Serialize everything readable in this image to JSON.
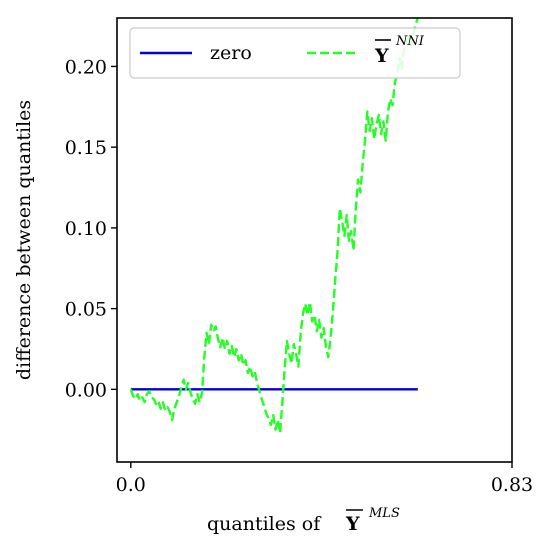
{
  "chart_data": {
    "type": "line",
    "xlabel": "quantiles of",
    "xlabel_symbol": "Y",
    "xlabel_superscript": "MLS",
    "ylabel": "difference between quantiles",
    "xlim": [
      -0.03,
      0.83
    ],
    "ylim": [
      -0.045,
      0.23
    ],
    "x_ticks": [
      0.0,
      0.83
    ],
    "x_tick_labels": [
      "0.0",
      "0.83"
    ],
    "y_ticks": [
      0.0,
      0.05,
      0.1,
      0.15,
      0.2
    ],
    "y_tick_labels": [
      "0.00",
      "0.05",
      "0.10",
      "0.15",
      "0.20"
    ],
    "grid": false,
    "legend_position": "top",
    "series": [
      {
        "name": "zero",
        "color": "#0000dd",
        "style": "solid",
        "x": [
          0.0,
          0.625
        ],
        "y": [
          0.0,
          0.0
        ]
      },
      {
        "name": "Y",
        "name_superscript": "NNI",
        "color": "#22ff22",
        "style": "dashed",
        "x": [
          0.0,
          0.005,
          0.01,
          0.015,
          0.02,
          0.025,
          0.03,
          0.035,
          0.04,
          0.045,
          0.05,
          0.055,
          0.06,
          0.065,
          0.07,
          0.075,
          0.08,
          0.085,
          0.09,
          0.095,
          0.1,
          0.105,
          0.11,
          0.115,
          0.12,
          0.125,
          0.13,
          0.135,
          0.14,
          0.145,
          0.15,
          0.155,
          0.16,
          0.165,
          0.17,
          0.175,
          0.18,
          0.185,
          0.19,
          0.195,
          0.2,
          0.205,
          0.21,
          0.215,
          0.22,
          0.225,
          0.23,
          0.235,
          0.24,
          0.245,
          0.25,
          0.255,
          0.26,
          0.265,
          0.27,
          0.275,
          0.28,
          0.285,
          0.29,
          0.295,
          0.3,
          0.305,
          0.31,
          0.315,
          0.32,
          0.325,
          0.33,
          0.335,
          0.34,
          0.345,
          0.35,
          0.355,
          0.36,
          0.365,
          0.37,
          0.375,
          0.38,
          0.385,
          0.39,
          0.395,
          0.4,
          0.405,
          0.41,
          0.415,
          0.42,
          0.425,
          0.43,
          0.435,
          0.44,
          0.445,
          0.45,
          0.455,
          0.46,
          0.465,
          0.47,
          0.475,
          0.48,
          0.485,
          0.49,
          0.495,
          0.5,
          0.505,
          0.51,
          0.515,
          0.52,
          0.525,
          0.53,
          0.535,
          0.54,
          0.545,
          0.55,
          0.555,
          0.56,
          0.565,
          0.57,
          0.575,
          0.58,
          0.585,
          0.59,
          0.595,
          0.6,
          0.605,
          0.61,
          0.615,
          0.62,
          0.625
        ],
        "y": [
          0.0,
          -0.004,
          -0.006,
          -0.003,
          -0.007,
          -0.005,
          -0.008,
          -0.003,
          -0.001,
          -0.005,
          -0.006,
          -0.009,
          -0.007,
          -0.012,
          -0.008,
          -0.013,
          -0.011,
          -0.014,
          -0.019,
          -0.012,
          -0.008,
          -0.004,
          0.001,
          0.006,
          0.0,
          0.004,
          -0.002,
          -0.006,
          -0.009,
          -0.003,
          -0.008,
          -0.002,
          0.02,
          0.035,
          0.028,
          0.04,
          0.036,
          0.039,
          0.031,
          0.026,
          0.032,
          0.025,
          0.03,
          0.022,
          0.027,
          0.02,
          0.025,
          0.018,
          0.022,
          0.015,
          0.018,
          0.01,
          0.014,
          0.008,
          0.011,
          0.004,
          -0.001,
          -0.006,
          -0.01,
          -0.015,
          -0.018,
          -0.022,
          -0.016,
          -0.025,
          -0.019,
          -0.027,
          -0.008,
          0.012,
          0.03,
          0.022,
          0.016,
          0.028,
          0.022,
          0.014,
          0.035,
          0.047,
          0.053,
          0.046,
          0.054,
          0.042,
          0.046,
          0.036,
          0.043,
          0.032,
          0.038,
          0.026,
          0.02,
          0.032,
          0.048,
          0.068,
          0.085,
          0.112,
          0.104,
          0.095,
          0.108,
          0.092,
          0.098,
          0.086,
          0.112,
          0.13,
          0.122,
          0.14,
          0.154,
          0.172,
          0.16,
          0.168,
          0.155,
          0.164,
          0.17,
          0.158,
          0.166,
          0.154,
          0.172,
          0.18,
          0.176,
          0.19,
          0.195,
          0.205,
          0.198,
          0.212,
          0.215,
          0.218,
          0.213,
          0.22,
          0.226,
          0.23
        ]
      }
    ]
  }
}
